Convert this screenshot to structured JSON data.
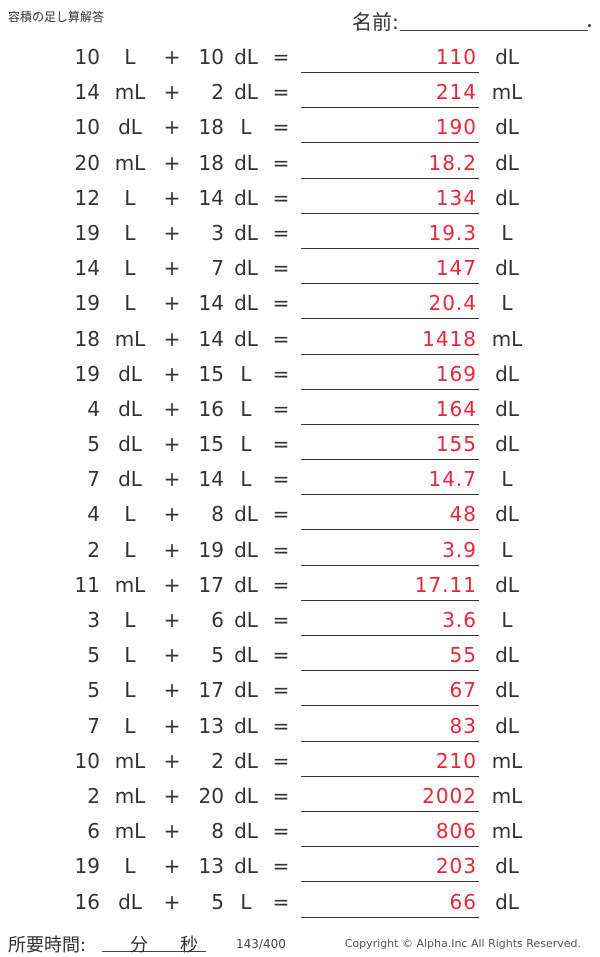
{
  "header": {
    "title": "容積の足し算解答",
    "name_label": "名前:"
  },
  "problems": [
    {
      "a": "10",
      "a_unit": "L",
      "b": "10",
      "b_unit": "dL",
      "answer": "110",
      "answer_unit": "dL"
    },
    {
      "a": "14",
      "a_unit": "mL",
      "b": "2",
      "b_unit": "dL",
      "answer": "214",
      "answer_unit": "mL"
    },
    {
      "a": "10",
      "a_unit": "dL",
      "b": "18",
      "b_unit": "L",
      "answer": "190",
      "answer_unit": "dL"
    },
    {
      "a": "20",
      "a_unit": "mL",
      "b": "18",
      "b_unit": "dL",
      "answer": "18.2",
      "answer_unit": "dL"
    },
    {
      "a": "12",
      "a_unit": "L",
      "b": "14",
      "b_unit": "dL",
      "answer": "134",
      "answer_unit": "dL"
    },
    {
      "a": "19",
      "a_unit": "L",
      "b": "3",
      "b_unit": "dL",
      "answer": "19.3",
      "answer_unit": "L"
    },
    {
      "a": "14",
      "a_unit": "L",
      "b": "7",
      "b_unit": "dL",
      "answer": "147",
      "answer_unit": "dL"
    },
    {
      "a": "19",
      "a_unit": "L",
      "b": "14",
      "b_unit": "dL",
      "answer": "20.4",
      "answer_unit": "L"
    },
    {
      "a": "18",
      "a_unit": "mL",
      "b": "14",
      "b_unit": "dL",
      "answer": "1418",
      "answer_unit": "mL"
    },
    {
      "a": "19",
      "a_unit": "dL",
      "b": "15",
      "b_unit": "L",
      "answer": "169",
      "answer_unit": "dL"
    },
    {
      "a": "4",
      "a_unit": "dL",
      "b": "16",
      "b_unit": "L",
      "answer": "164",
      "answer_unit": "dL"
    },
    {
      "a": "5",
      "a_unit": "dL",
      "b": "15",
      "b_unit": "L",
      "answer": "155",
      "answer_unit": "dL"
    },
    {
      "a": "7",
      "a_unit": "dL",
      "b": "14",
      "b_unit": "L",
      "answer": "14.7",
      "answer_unit": "L"
    },
    {
      "a": "4",
      "a_unit": "L",
      "b": "8",
      "b_unit": "dL",
      "answer": "48",
      "answer_unit": "dL"
    },
    {
      "a": "2",
      "a_unit": "L",
      "b": "19",
      "b_unit": "dL",
      "answer": "3.9",
      "answer_unit": "L"
    },
    {
      "a": "11",
      "a_unit": "mL",
      "b": "17",
      "b_unit": "dL",
      "answer": "17.11",
      "answer_unit": "dL"
    },
    {
      "a": "3",
      "a_unit": "L",
      "b": "6",
      "b_unit": "dL",
      "answer": "3.6",
      "answer_unit": "L"
    },
    {
      "a": "5",
      "a_unit": "L",
      "b": "5",
      "b_unit": "dL",
      "answer": "55",
      "answer_unit": "dL"
    },
    {
      "a": "5",
      "a_unit": "L",
      "b": "17",
      "b_unit": "dL",
      "answer": "67",
      "answer_unit": "dL"
    },
    {
      "a": "7",
      "a_unit": "L",
      "b": "13",
      "b_unit": "dL",
      "answer": "83",
      "answer_unit": "dL"
    },
    {
      "a": "10",
      "a_unit": "mL",
      "b": "2",
      "b_unit": "dL",
      "answer": "210",
      "answer_unit": "mL"
    },
    {
      "a": "2",
      "a_unit": "mL",
      "b": "20",
      "b_unit": "dL",
      "answer": "2002",
      "answer_unit": "mL"
    },
    {
      "a": "6",
      "a_unit": "mL",
      "b": "8",
      "b_unit": "dL",
      "answer": "806",
      "answer_unit": "mL"
    },
    {
      "a": "19",
      "a_unit": "L",
      "b": "13",
      "b_unit": "dL",
      "answer": "203",
      "answer_unit": "dL"
    },
    {
      "a": "16",
      "a_unit": "dL",
      "b": "5",
      "b_unit": "L",
      "answer": "66",
      "answer_unit": "dL"
    }
  ],
  "symbols": {
    "plus": "+",
    "equals": "="
  },
  "footer": {
    "time_label": "所要時間:",
    "minutes_label": "分",
    "seconds_label": "秒",
    "page_number": "143/400",
    "copyright": "Copyright © Alpha.Inc All Rights Reserved."
  },
  "colors": {
    "answer": "#e8273a",
    "text": "#333333"
  }
}
